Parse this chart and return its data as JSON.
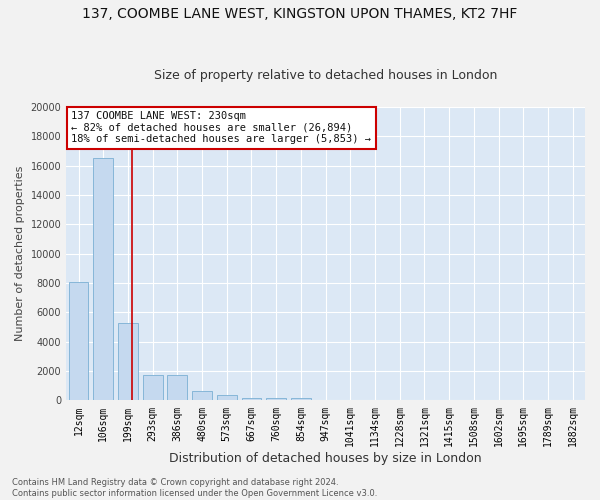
{
  "title": "137, COOMBE LANE WEST, KINGSTON UPON THAMES, KT2 7HF",
  "subtitle": "Size of property relative to detached houses in London",
  "xlabel": "Distribution of detached houses by size in London",
  "ylabel": "Number of detached properties",
  "bar_labels": [
    "12sqm",
    "106sqm",
    "199sqm",
    "293sqm",
    "386sqm",
    "480sqm",
    "573sqm",
    "667sqm",
    "760sqm",
    "854sqm",
    "947sqm",
    "1041sqm",
    "1134sqm",
    "1228sqm",
    "1321sqm",
    "1415sqm",
    "1508sqm",
    "1602sqm",
    "1695sqm",
    "1789sqm",
    "1882sqm"
  ],
  "bar_values": [
    8100,
    16500,
    5300,
    1750,
    1750,
    650,
    350,
    200,
    150,
    150,
    50,
    0,
    0,
    0,
    0,
    0,
    0,
    0,
    0,
    0,
    0
  ],
  "bar_color": "#c5d9ef",
  "bar_edgecolor": "#7bafd4",
  "vline_x": 2.15,
  "vline_color": "#cc0000",
  "annotation_line1": "137 COOMBE LANE WEST: 230sqm",
  "annotation_line2": "← 82% of detached houses are smaller (26,894)",
  "annotation_line3": "18% of semi-detached houses are larger (5,853) →",
  "annotation_box_color": "#ffffff",
  "annotation_border_color": "#cc0000",
  "ylim": [
    0,
    20000
  ],
  "yticks": [
    0,
    2000,
    4000,
    6000,
    8000,
    10000,
    12000,
    14000,
    16000,
    18000,
    20000
  ],
  "background_color": "#dce8f5",
  "fig_background": "#f2f2f2",
  "grid_color": "#ffffff",
  "title_fontsize": 10,
  "subtitle_fontsize": 9,
  "axis_label_fontsize": 8,
  "tick_fontsize": 7,
  "annotation_fontsize": 7.5,
  "footer_text": "Contains HM Land Registry data © Crown copyright and database right 2024.\nContains public sector information licensed under the Open Government Licence v3.0."
}
